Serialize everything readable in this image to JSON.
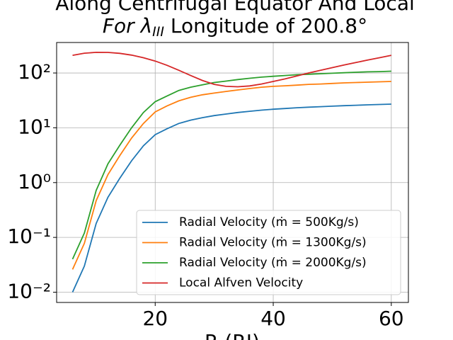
{
  "chart_data": {
    "type": "line",
    "title": "Along Centrifugal Equator And Local",
    "title_line2": [
      "For λ",
      "III",
      " Longitude of 200.8°"
    ],
    "xlabel": "R (RJ)",
    "x": [
      6,
      8,
      10,
      12,
      14,
      16,
      18,
      20,
      22,
      24,
      26,
      28,
      30,
      32,
      34,
      36,
      38,
      40,
      42,
      44,
      46,
      48,
      50,
      52,
      54,
      56,
      58,
      60
    ],
    "series": [
      {
        "name": "Radial Velocity (ṁ = 500Kg/s)",
        "color": "#1f77b4",
        "values": [
          0.01,
          0.03,
          0.18,
          0.54,
          1.2,
          2.5,
          4.7,
          7.5,
          9.6,
          12,
          13.8,
          15.3,
          16.7,
          17.8,
          19,
          20,
          21,
          21.8,
          22.5,
          23.2,
          23.8,
          24.3,
          24.8,
          25.3,
          25.8,
          26.2,
          26.6,
          27
        ]
      },
      {
        "name": "Radial Velocity (ṁ = 1300Kg/s)",
        "color": "#ff7f0e",
        "values": [
          0.026,
          0.078,
          0.47,
          1.4,
          3.1,
          6.5,
          12,
          19.5,
          25,
          31,
          36,
          40,
          43,
          46,
          49,
          52,
          55,
          57,
          58.5,
          60,
          62,
          63,
          64.5,
          66,
          67,
          68,
          69,
          70
        ]
      },
      {
        "name": "Radial Velocity (ṁ = 2000Kg/s)",
        "color": "#2ca02c",
        "values": [
          0.04,
          0.12,
          0.72,
          2.2,
          4.8,
          10,
          19,
          30,
          38,
          48,
          55,
          61,
          67,
          71,
          76,
          80,
          84,
          87,
          90,
          93,
          95,
          97,
          99,
          101,
          103,
          105,
          106,
          108
        ]
      },
      {
        "name": "Local Alfven Velocity",
        "color": "#d62728",
        "values": [
          210,
          230,
          238,
          237,
          228,
          212,
          190,
          165,
          138,
          112,
          90,
          73,
          62,
          57,
          56,
          58,
          63,
          70,
          78,
          88,
          100,
          112,
          125,
          140,
          155,
          172,
          190,
          210
        ]
      }
    ],
    "xlim": [
      3.3,
      62.9
    ],
    "ylim": [
      0.0065,
      360
    ],
    "ylog": true,
    "xticks": [
      20,
      40,
      60
    ],
    "yticks": [
      {
        "value": 0.01,
        "label": "10⁻²"
      },
      {
        "value": 0.1,
        "label": "10⁻¹"
      },
      {
        "value": 1,
        "label": "10⁰"
      },
      {
        "value": 10,
        "label": "10¹"
      },
      {
        "value": 100,
        "label": "10²"
      }
    ],
    "grid": true,
    "legend": "lower right"
  }
}
